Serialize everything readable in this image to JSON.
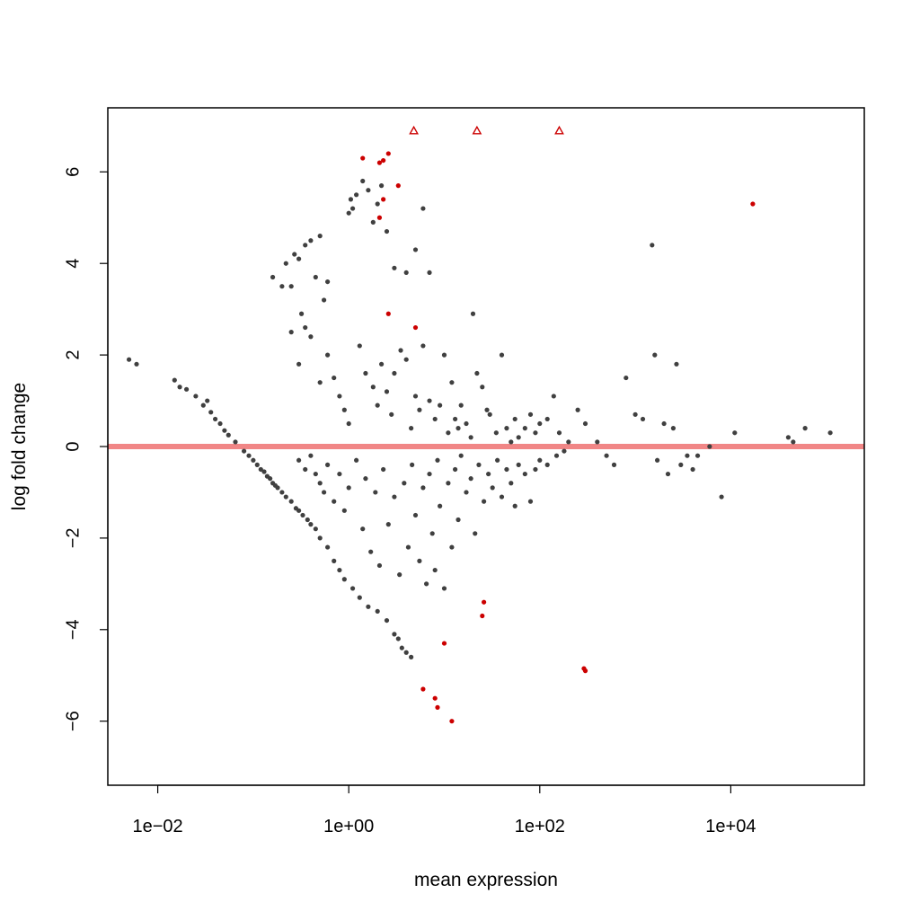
{
  "chart_data": {
    "type": "scatter",
    "title": "",
    "xlabel": "mean expression",
    "ylabel": "log fold change",
    "x_scale": "log10",
    "xlim": [
      0.003,
      250000
    ],
    "ylim": [
      -7.4,
      7.4
    ],
    "x_ticks": [
      {
        "value": 0.01,
        "label": "1e−02"
      },
      {
        "value": 1,
        "label": "1e+00"
      },
      {
        "value": 100,
        "label": "1e+02"
      },
      {
        "value": 10000,
        "label": "1e+04"
      }
    ],
    "y_ticks": [
      {
        "value": -6,
        "label": "−6"
      },
      {
        "value": -4,
        "label": "−4"
      },
      {
        "value": -2,
        "label": "−2"
      },
      {
        "value": 0,
        "label": "0"
      },
      {
        "value": 2,
        "label": "2"
      },
      {
        "value": 4,
        "label": "4"
      },
      {
        "value": 6,
        "label": "6"
      }
    ],
    "grid": false,
    "legend": "none",
    "reference_line": {
      "y": 0,
      "color": "#f08080"
    },
    "colors": {
      "nonsignificant": "#404040",
      "significant": "#cc0000",
      "reference": "#f08080"
    },
    "series": [
      {
        "marker": "dot",
        "color": "#404040",
        "points": [
          [
            0.005,
            1.9
          ],
          [
            0.006,
            1.8
          ],
          [
            0.015,
            1.45
          ],
          [
            0.017,
            1.3
          ],
          [
            0.02,
            1.25
          ],
          [
            0.025,
            1.1
          ],
          [
            0.03,
            0.9
          ],
          [
            0.033,
            1.0
          ],
          [
            0.036,
            0.75
          ],
          [
            0.04,
            0.6
          ],
          [
            0.045,
            0.5
          ],
          [
            0.05,
            0.35
          ],
          [
            0.055,
            0.25
          ],
          [
            0.065,
            0.1
          ],
          [
            0.08,
            -0.1
          ],
          [
            0.09,
            -0.2
          ],
          [
            0.1,
            -0.3
          ],
          [
            0.11,
            -0.4
          ],
          [
            0.12,
            -0.5
          ],
          [
            0.13,
            -0.55
          ],
          [
            0.14,
            -0.65
          ],
          [
            0.15,
            -0.7
          ],
          [
            0.16,
            -0.8
          ],
          [
            0.17,
            -0.85
          ],
          [
            0.18,
            -0.9
          ],
          [
            0.2,
            -1.0
          ],
          [
            0.22,
            -1.1
          ],
          [
            0.25,
            -1.2
          ],
          [
            0.28,
            -1.35
          ],
          [
            0.3,
            -1.4
          ],
          [
            0.33,
            -1.5
          ],
          [
            0.37,
            -1.6
          ],
          [
            0.4,
            -1.7
          ],
          [
            0.45,
            -1.8
          ],
          [
            0.5,
            -2.0
          ],
          [
            0.6,
            -2.2
          ],
          [
            0.7,
            -2.5
          ],
          [
            0.8,
            -2.7
          ],
          [
            0.9,
            -2.9
          ],
          [
            1.1,
            -3.1
          ],
          [
            1.3,
            -3.3
          ],
          [
            1.6,
            -3.5
          ],
          [
            2.0,
            -3.6
          ],
          [
            2.5,
            -3.8
          ],
          [
            3.0,
            -4.1
          ],
          [
            3.3,
            -4.2
          ],
          [
            3.6,
            -4.4
          ],
          [
            4.0,
            -4.5
          ],
          [
            4.5,
            -4.6
          ],
          [
            0.16,
            3.7
          ],
          [
            0.2,
            3.5
          ],
          [
            0.22,
            4.0
          ],
          [
            0.25,
            3.5
          ],
          [
            0.27,
            4.2
          ],
          [
            0.3,
            4.1
          ],
          [
            0.35,
            4.4
          ],
          [
            0.4,
            4.5
          ],
          [
            0.45,
            3.7
          ],
          [
            0.5,
            4.6
          ],
          [
            0.55,
            3.2
          ],
          [
            0.6,
            3.6
          ],
          [
            1.0,
            5.1
          ],
          [
            1.05,
            5.4
          ],
          [
            1.1,
            5.2
          ],
          [
            1.2,
            5.5
          ],
          [
            1.4,
            5.8
          ],
          [
            1.6,
            5.6
          ],
          [
            1.8,
            4.9
          ],
          [
            2.0,
            5.3
          ],
          [
            2.2,
            5.7
          ],
          [
            2.5,
            4.7
          ],
          [
            3.0,
            3.9
          ],
          [
            4.0,
            3.8
          ],
          [
            5.0,
            4.3
          ],
          [
            6.0,
            5.2
          ],
          [
            7.0,
            3.8
          ],
          [
            0.25,
            2.5
          ],
          [
            0.3,
            1.8
          ],
          [
            0.32,
            2.9
          ],
          [
            0.35,
            2.6
          ],
          [
            0.4,
            2.4
          ],
          [
            0.5,
            1.4
          ],
          [
            0.6,
            2.0
          ],
          [
            0.7,
            1.5
          ],
          [
            0.8,
            1.1
          ],
          [
            0.9,
            0.8
          ],
          [
            1.0,
            0.5
          ],
          [
            1.3,
            2.2
          ],
          [
            1.5,
            1.6
          ],
          [
            1.8,
            1.3
          ],
          [
            2.0,
            0.9
          ],
          [
            2.2,
            1.8
          ],
          [
            2.5,
            1.2
          ],
          [
            2.8,
            0.7
          ],
          [
            3.0,
            1.6
          ],
          [
            3.5,
            2.1
          ],
          [
            4.0,
            1.9
          ],
          [
            4.5,
            0.4
          ],
          [
            5.0,
            1.1
          ],
          [
            5.5,
            0.8
          ],
          [
            6.0,
            2.2
          ],
          [
            7.0,
            1.0
          ],
          [
            8.0,
            0.6
          ],
          [
            9.0,
            0.9
          ],
          [
            10.0,
            2.0
          ],
          [
            11.0,
            0.3
          ],
          [
            12.0,
            1.4
          ],
          [
            13.0,
            0.6
          ],
          [
            14.0,
            0.4
          ],
          [
            15.0,
            0.9
          ],
          [
            17.0,
            0.5
          ],
          [
            19.0,
            0.2
          ],
          [
            20.0,
            2.9
          ],
          [
            22.0,
            1.6
          ],
          [
            25.0,
            1.3
          ],
          [
            28.0,
            0.8
          ],
          [
            30.0,
            0.7
          ],
          [
            35.0,
            0.3
          ],
          [
            40.0,
            2.0
          ],
          [
            45.0,
            0.4
          ],
          [
            50.0,
            0.1
          ],
          [
            55.0,
            0.6
          ],
          [
            60.0,
            0.2
          ],
          [
            70.0,
            0.4
          ],
          [
            80.0,
            0.7
          ],
          [
            90.0,
            0.3
          ],
          [
            100.0,
            0.5
          ],
          [
            120.0,
            0.6
          ],
          [
            140.0,
            1.1
          ],
          [
            160.0,
            0.3
          ],
          [
            200.0,
            0.1
          ],
          [
            0.3,
            -0.3
          ],
          [
            0.35,
            -0.5
          ],
          [
            0.4,
            -0.2
          ],
          [
            0.45,
            -0.6
          ],
          [
            0.5,
            -0.8
          ],
          [
            0.55,
            -1.0
          ],
          [
            0.6,
            -0.4
          ],
          [
            0.7,
            -1.2
          ],
          [
            0.8,
            -0.6
          ],
          [
            0.9,
            -1.4
          ],
          [
            1.0,
            -0.9
          ],
          [
            1.2,
            -0.3
          ],
          [
            1.4,
            -1.8
          ],
          [
            1.5,
            -0.7
          ],
          [
            1.7,
            -2.3
          ],
          [
            1.9,
            -1.0
          ],
          [
            2.1,
            -2.6
          ],
          [
            2.3,
            -0.5
          ],
          [
            2.6,
            -1.7
          ],
          [
            3.0,
            -1.1
          ],
          [
            3.4,
            -2.8
          ],
          [
            3.8,
            -0.8
          ],
          [
            4.2,
            -2.2
          ],
          [
            4.6,
            -0.4
          ],
          [
            5.0,
            -1.5
          ],
          [
            5.5,
            -2.5
          ],
          [
            6.0,
            -0.9
          ],
          [
            6.5,
            -3.0
          ],
          [
            7.0,
            -0.6
          ],
          [
            7.5,
            -1.9
          ],
          [
            8.0,
            -2.7
          ],
          [
            8.5,
            -0.3
          ],
          [
            9.0,
            -1.3
          ],
          [
            10.0,
            -3.1
          ],
          [
            11.0,
            -0.8
          ],
          [
            12.0,
            -2.2
          ],
          [
            13.0,
            -0.5
          ],
          [
            14.0,
            -1.6
          ],
          [
            15.0,
            -0.2
          ],
          [
            17.0,
            -1.0
          ],
          [
            19.0,
            -0.7
          ],
          [
            21.0,
            -1.9
          ],
          [
            23.0,
            -0.4
          ],
          [
            26.0,
            -1.2
          ],
          [
            29.0,
            -0.6
          ],
          [
            32.0,
            -0.9
          ],
          [
            36.0,
            -0.3
          ],
          [
            40.0,
            -1.1
          ],
          [
            45.0,
            -0.5
          ],
          [
            50.0,
            -0.8
          ],
          [
            55.0,
            -1.3
          ],
          [
            60.0,
            -0.4
          ],
          [
            70.0,
            -0.6
          ],
          [
            80.0,
            -1.2
          ],
          [
            90.0,
            -0.5
          ],
          [
            100.0,
            -0.3
          ],
          [
            120.0,
            -0.4
          ],
          [
            150.0,
            -0.2
          ],
          [
            180.0,
            -0.1
          ],
          [
            250.0,
            0.8
          ],
          [
            300.0,
            0.5
          ],
          [
            400.0,
            0.1
          ],
          [
            500.0,
            -0.2
          ],
          [
            600.0,
            -0.4
          ],
          [
            800.0,
            1.5
          ],
          [
            1000.0,
            0.7
          ],
          [
            1200.0,
            0.6
          ],
          [
            1500.0,
            4.4
          ],
          [
            1600.0,
            2.0
          ],
          [
            1700.0,
            -0.3
          ],
          [
            2000.0,
            0.5
          ],
          [
            2200.0,
            -0.6
          ],
          [
            2500.0,
            0.4
          ],
          [
            2700.0,
            1.8
          ],
          [
            3000.0,
            -0.4
          ],
          [
            3500.0,
            -0.2
          ],
          [
            4000.0,
            -0.5
          ],
          [
            4500.0,
            -0.2
          ],
          [
            6000.0,
            0.0
          ],
          [
            8000.0,
            -1.1
          ],
          [
            11000.0,
            0.3
          ],
          [
            40000.0,
            0.2
          ],
          [
            45000.0,
            0.1
          ],
          [
            60000.0,
            0.4
          ],
          [
            110000.0,
            0.3
          ]
        ]
      },
      {
        "marker": "dot",
        "color": "#cc0000",
        "points": [
          [
            1.4,
            6.3
          ],
          [
            2.1,
            6.2
          ],
          [
            2.3,
            6.25
          ],
          [
            2.6,
            6.4
          ],
          [
            3.3,
            5.7
          ],
          [
            2.3,
            5.4
          ],
          [
            2.1,
            5.0
          ],
          [
            2.6,
            2.9
          ],
          [
            5.0,
            2.6
          ],
          [
            6.0,
            -5.3
          ],
          [
            8.0,
            -5.5
          ],
          [
            8.5,
            -5.7
          ],
          [
            10.0,
            -4.3
          ],
          [
            12.0,
            -6.0
          ],
          [
            26.0,
            -3.4
          ],
          [
            25.0,
            -3.7
          ],
          [
            300.0,
            -4.9
          ],
          [
            290.0,
            -4.85
          ],
          [
            17000.0,
            5.3
          ]
        ]
      },
      {
        "marker": "open-triangle",
        "color": "#cc0000",
        "points": [
          [
            4.8,
            6.9
          ],
          [
            22.0,
            6.9
          ],
          [
            160.0,
            6.9
          ]
        ]
      }
    ]
  }
}
